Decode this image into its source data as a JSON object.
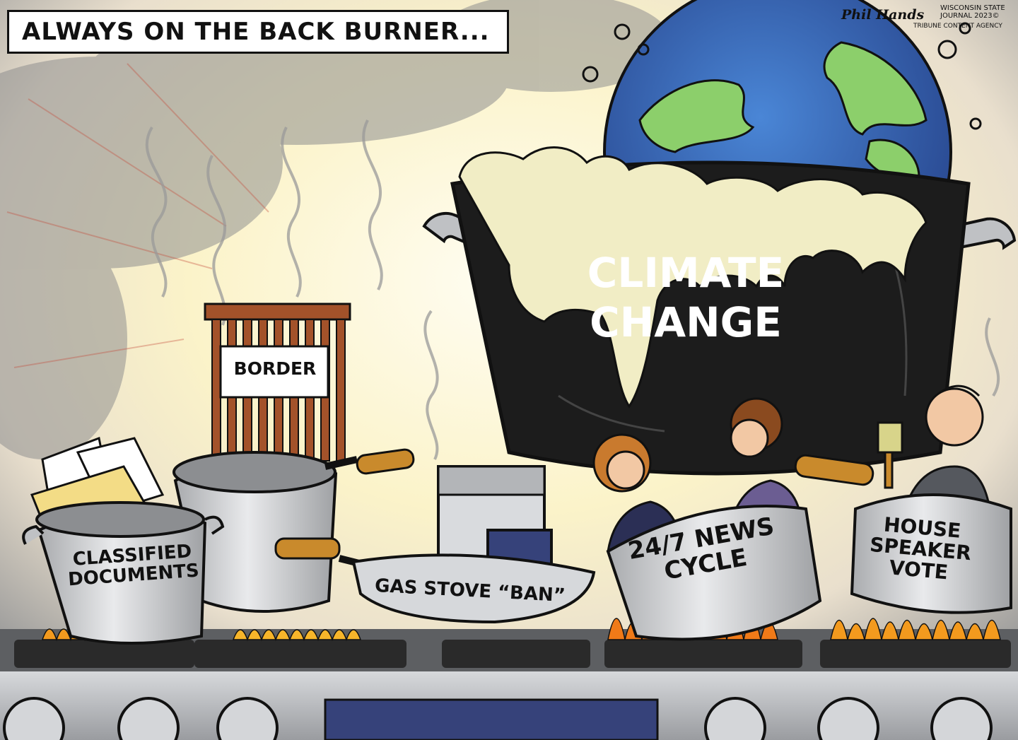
{
  "cartoon": {
    "caption": "ALWAYS ON THE BACK BURNER...",
    "credit": {
      "signature": "Phil Hands",
      "outlet": "WISCONSIN STATE JOURNAL 2023©",
      "agency": "TRIBUNE CONTENT AGENCY"
    },
    "labels": {
      "climate_line1": "CLIMATE",
      "climate_line2": "CHANGE",
      "border": "BORDER",
      "classified_line1": "CLASSIFIED",
      "classified_line2": "DOCUMENTS",
      "gas_stove": "GAS STOVE “BAN”",
      "news_line1": "24/7 NEWS",
      "news_line2": "CYCLE",
      "house_line1": "HOUSE",
      "house_line2": "SPEAKER",
      "house_line3": "VOTE"
    }
  },
  "colors": {
    "pot_black": "#1c1c1c",
    "pot_steel": "#c4c6c9",
    "flame_orange": "#f39a1e",
    "flame_yellow": "#f7d33a",
    "earth_green": "#8ccf6b",
    "earth_blue": "#3467b8",
    "foam": "#f1edc5",
    "handle_wood": "#c98a2c",
    "border_bars": "#a3522a"
  }
}
